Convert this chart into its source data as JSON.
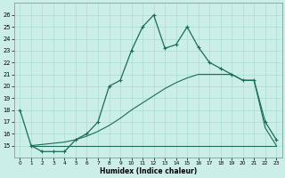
{
  "xlabel": "Humidex (Indice chaleur)",
  "bg_color": "#cceee8",
  "grid_color": "#aaddcc",
  "line_color": "#1a6b5a",
  "xlim": [
    -0.5,
    23.5
  ],
  "ylim": [
    14,
    27
  ],
  "xticks": [
    0,
    1,
    2,
    3,
    4,
    5,
    6,
    7,
    8,
    9,
    10,
    11,
    12,
    13,
    14,
    15,
    16,
    17,
    18,
    19,
    20,
    21,
    22,
    23
  ],
  "yticks": [
    15,
    16,
    17,
    18,
    19,
    20,
    21,
    22,
    23,
    24,
    25,
    26
  ],
  "ytick_labels": [
    "15",
    "16",
    "17",
    "18",
    "19",
    "20",
    "21",
    "22",
    "23",
    "24",
    "25",
    "26"
  ],
  "xtick_labels": [
    "0",
    "1",
    "2",
    "3",
    "4",
    "5",
    "6",
    "7",
    "8",
    "9",
    "10",
    "11",
    "12",
    "13",
    "14",
    "15",
    "16",
    "17",
    "18",
    "19",
    "20",
    "21",
    "22",
    "23"
  ],
  "line1_x": [
    0,
    1,
    2,
    3,
    4,
    5,
    6,
    7,
    8,
    9,
    10,
    11,
    12,
    13,
    14,
    15,
    16,
    17,
    18,
    19,
    20,
    21,
    22,
    23
  ],
  "line1_y": [
    18.0,
    15.0,
    14.5,
    14.5,
    14.5,
    15.5,
    16.0,
    17.0,
    20.0,
    20.5,
    23.0,
    25.0,
    26.0,
    23.2,
    23.5,
    25.0,
    23.3,
    22.0,
    21.5,
    21.0,
    20.5,
    20.5,
    17.0,
    15.5
  ],
  "line2_x": [
    1,
    23
  ],
  "line2_y": [
    15.0,
    15.0
  ],
  "line3_x": [
    1,
    2,
    3,
    4,
    5,
    6,
    7,
    8,
    9,
    10,
    11,
    12,
    13,
    14,
    15,
    16,
    17,
    18,
    19,
    20,
    21,
    22,
    23
  ],
  "line3_y": [
    15.0,
    15.1,
    15.2,
    15.3,
    15.5,
    15.8,
    16.2,
    16.7,
    17.3,
    18.0,
    18.6,
    19.2,
    19.8,
    20.3,
    20.7,
    21.0,
    21.0,
    21.0,
    21.0,
    20.5,
    20.5,
    16.5,
    15.0
  ]
}
